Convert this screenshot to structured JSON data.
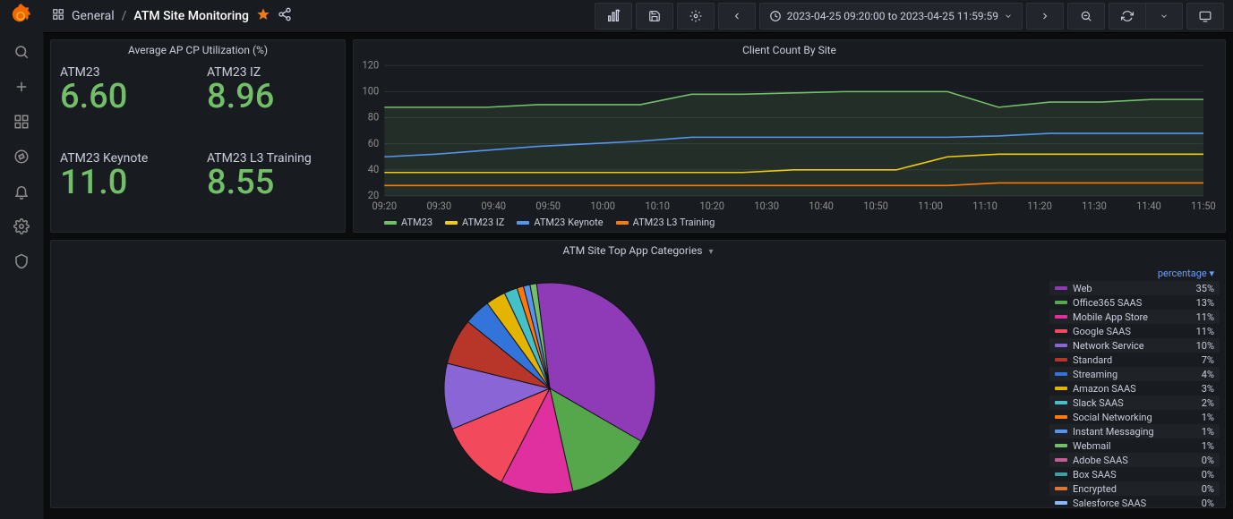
{
  "breadcrumbs": {
    "folder": "General",
    "title": "ATM Site Monitoring"
  },
  "topbar": {
    "time_range": "2023-04-25 09:20:00 to 2023-04-25 11:59:59"
  },
  "colors": {
    "accent": "#73bf69",
    "panel_bg": "#181b1f"
  },
  "stat_panel": {
    "title": "Average AP CP Utilization (%)",
    "cells": [
      {
        "label": "ATM23",
        "value": "6.60"
      },
      {
        "label": "ATM23 IZ",
        "value": "8.96"
      },
      {
        "label": "ATM23 Keynote",
        "value": "11.0"
      },
      {
        "label": "ATM23 L3 Training",
        "value": "8.55"
      }
    ]
  },
  "ts_panel": {
    "title": "Client Count By Site",
    "y": {
      "min": 20,
      "max": 120,
      "ticks": [
        20,
        40,
        60,
        80,
        100,
        120
      ]
    },
    "x": {
      "labels": [
        "09:20",
        "09:30",
        "09:40",
        "09:50",
        "10:00",
        "10:10",
        "10:20",
        "10:30",
        "10:40",
        "10:50",
        "11:00",
        "11:10",
        "11:20",
        "11:30",
        "11:40",
        "11:50"
      ]
    },
    "series": [
      {
        "name": "ATM23",
        "color": "#73bf69",
        "fill": true,
        "values": [
          88,
          88,
          88,
          90,
          90,
          90,
          98,
          98,
          99,
          100,
          100,
          100,
          88,
          92,
          92,
          94,
          94
        ]
      },
      {
        "name": "ATM23 IZ",
        "color": "#f2cc0c",
        "fill": false,
        "values": [
          38,
          38,
          38,
          38,
          38,
          38,
          38,
          38,
          40,
          40,
          40,
          50,
          52,
          52,
          52,
          52,
          52
        ]
      },
      {
        "name": "ATM23 Keynote",
        "color": "#5794f2",
        "fill": false,
        "values": [
          50,
          52,
          55,
          58,
          60,
          62,
          65,
          65,
          65,
          65,
          65,
          65,
          66,
          68,
          68,
          68,
          68
        ]
      },
      {
        "name": "ATM23 L3 Training",
        "color": "#ff780a",
        "fill": false,
        "values": [
          28,
          28,
          28,
          28,
          28,
          28,
          28,
          28,
          28,
          28,
          28,
          28,
          30,
          30,
          30,
          30,
          30
        ]
      }
    ]
  },
  "pie_panel": {
    "title": "ATM Site Top App Categories",
    "legend_header": "percentage",
    "slices": [
      {
        "label": "Web",
        "pct": 35,
        "color": "#8f3bb8"
      },
      {
        "label": "Office365 SAAS",
        "pct": 13,
        "color": "#56a64b"
      },
      {
        "label": "Mobile App Store",
        "pct": 11,
        "color": "#e02f9f"
      },
      {
        "label": "Google SAAS",
        "pct": 11,
        "color": "#f2495c"
      },
      {
        "label": "Network Service",
        "pct": 10,
        "color": "#8965d6"
      },
      {
        "label": "Standard",
        "pct": 7,
        "color": "#b8352a"
      },
      {
        "label": "Streaming",
        "pct": 4,
        "color": "#3274d9"
      },
      {
        "label": "Amazon SAAS",
        "pct": 3,
        "color": "#e5b400"
      },
      {
        "label": "Slack SAAS",
        "pct": 2,
        "color": "#44c0c8"
      },
      {
        "label": "Social Networking",
        "pct": 1,
        "color": "#ff780a"
      },
      {
        "label": "Instant Messaging",
        "pct": 1,
        "color": "#5794f2"
      },
      {
        "label": "Webmail",
        "pct": 1,
        "color": "#73bf69"
      },
      {
        "label": "Adobe SAAS",
        "pct": 0,
        "color": "#c15c94"
      },
      {
        "label": "Box SAAS",
        "pct": 0,
        "color": "#3ea0a0"
      },
      {
        "label": "Encrypted",
        "pct": 0,
        "color": "#e0752d"
      },
      {
        "label": "Salesforce SAAS",
        "pct": 0,
        "color": "#8ab8ff"
      }
    ]
  }
}
